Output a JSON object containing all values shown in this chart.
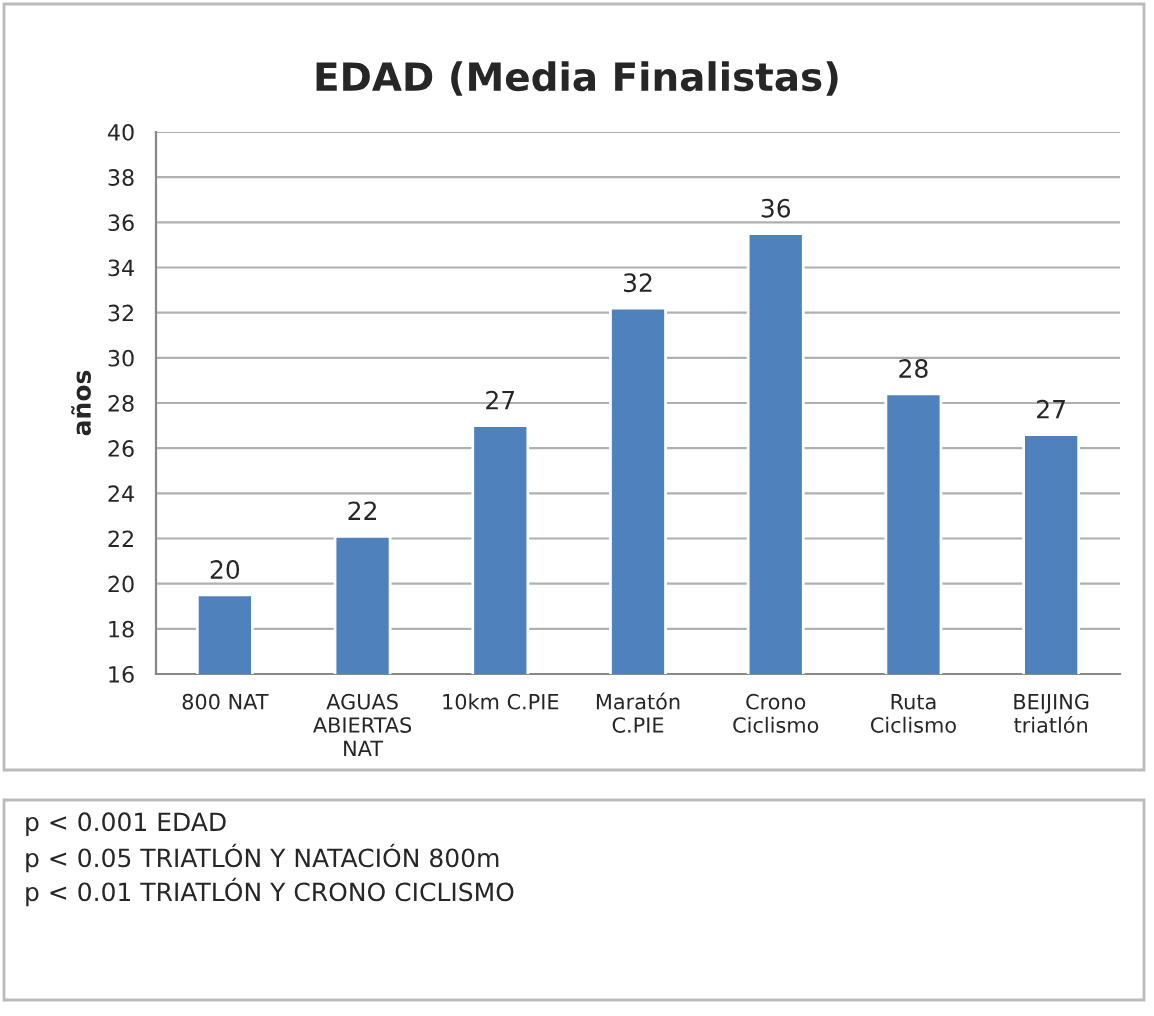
{
  "chart_data": {
    "type": "bar",
    "title": "EDAD (Media Finalistas)",
    "ylabel": "años",
    "categories": [
      "800 NAT",
      "AGUAS\nABIERTAS\nNAT",
      "10km C.PIE",
      "Maratón\nC.PIE",
      "Crono\nCiclismo",
      "Ruta\nCiclismo",
      "BEIJING\ntriatlón"
    ],
    "values": [
      19.5,
      22.1,
      27.0,
      32.2,
      35.5,
      28.4,
      26.6
    ],
    "value_labels": [
      "20",
      "22",
      "27",
      "32",
      "36",
      "28",
      "27"
    ],
    "color": "#4f81bd",
    "ylim": [
      16,
      40
    ],
    "yticks": [
      16,
      18,
      20,
      22,
      24,
      26,
      28,
      30,
      32,
      34,
      36,
      38,
      40
    ],
    "grid": "y",
    "annotations": [
      "p < 0.001 EDAD",
      "p < 0.05 TRIATLÓN Y NATACIÓN 800m",
      "p < 0.01 TRIATLÓN Y CRONO CICLISMO"
    ]
  }
}
